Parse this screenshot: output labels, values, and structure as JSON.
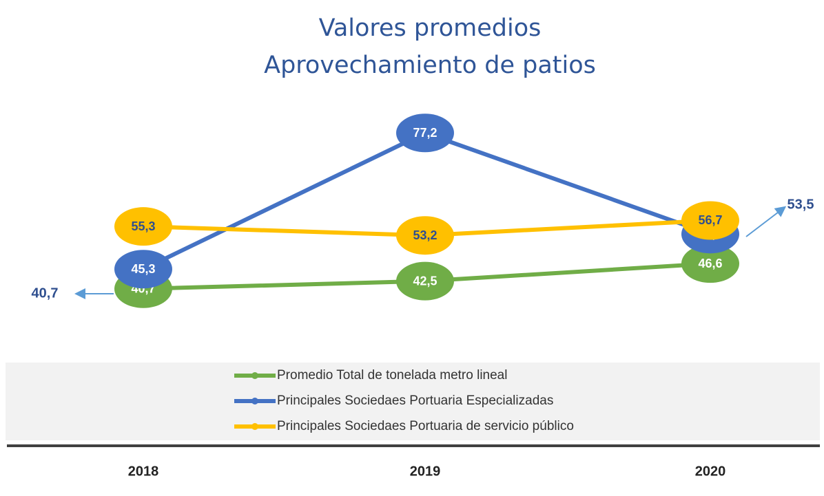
{
  "chart_data": {
    "type": "line",
    "title": [
      "Valores promedios",
      "Aprovechamiento de patios"
    ],
    "categories": [
      "2018",
      "2019",
      "2020"
    ],
    "series": [
      {
        "name": "Promedio Total de tonelada metro lineal",
        "color": "#70ad47",
        "values": [
          40.7,
          42.5,
          46.6
        ],
        "value_labels": [
          "40,7",
          "42,5",
          "46,6"
        ]
      },
      {
        "name": "Principales Sociedaes Portuaria Especializadas",
        "color": "#4472c4",
        "values": [
          45.3,
          77.2,
          53.5
        ],
        "value_labels": [
          "45,3",
          "77,2",
          "53,5"
        ]
      },
      {
        "name": "Principales Sociedaes Portuaria de servicio público",
        "color": "#ffc000",
        "values": [
          55.3,
          53.2,
          56.7
        ],
        "value_labels": [
          "55,3",
          "53,2",
          "56,7"
        ]
      }
    ],
    "ylim": [
      31,
      89
    ]
  }
}
